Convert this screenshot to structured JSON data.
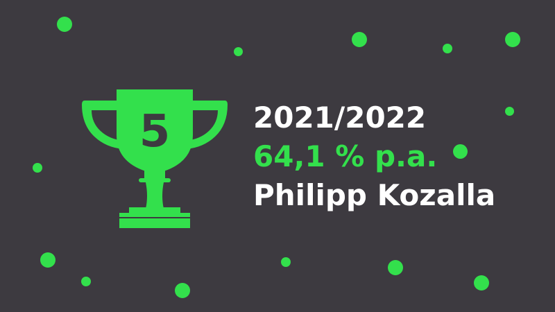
{
  "rank": "5",
  "season": "2021/2022",
  "performance": "64,1 % p.a.",
  "winner": "Philipp Kozalla",
  "colors": {
    "background": "#3d3a40",
    "accent": "#33e04c",
    "text": "#ffffff"
  },
  "icons": [
    "trophy-icon"
  ]
}
